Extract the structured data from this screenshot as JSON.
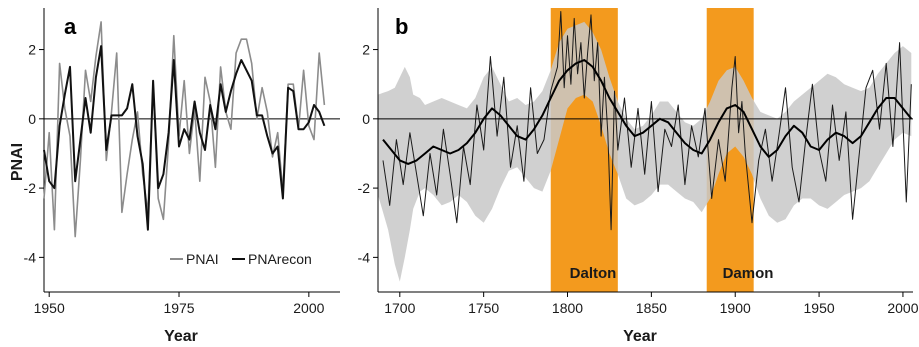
{
  "chart_data": [
    {
      "panel": "a",
      "type": "line",
      "xlabel": "Year",
      "ylabel": "PNAI",
      "xlim": [
        1949,
        2006
      ],
      "ylim": [
        -5,
        3.2
      ],
      "xticks": [
        1950,
        1975,
        2000
      ],
      "yticks": [
        -4,
        -2,
        0,
        2
      ],
      "zero_line": true,
      "legend": {
        "placement": "bottom-right",
        "entries": [
          "PNAI",
          "PNArecon"
        ]
      },
      "series": [
        {
          "name": "PNAI",
          "color": "#8c8c8c",
          "x": [
            1949,
            1950,
            1951,
            1952,
            1953,
            1954,
            1955,
            1956,
            1957,
            1958,
            1959,
            1960,
            1961,
            1962,
            1963,
            1964,
            1965,
            1966,
            1967,
            1968,
            1969,
            1970,
            1971,
            1972,
            1973,
            1974,
            1975,
            1976,
            1977,
            1978,
            1979,
            1980,
            1981,
            1982,
            1983,
            1984,
            1985,
            1986,
            1987,
            1988,
            1989,
            1990,
            1991,
            1992,
            1993,
            1994,
            1995,
            1996,
            1997,
            1998,
            1999,
            2000,
            2001,
            2002,
            2003
          ],
          "y": [
            -2.3,
            -0.4,
            -3.2,
            1.6,
            0.3,
            -0.5,
            -3.4,
            -1.2,
            1.4,
            0.5,
            1.8,
            2.8,
            -1.2,
            0.2,
            1.9,
            -2.7,
            -1.6,
            -0.6,
            0.2,
            -1.6,
            -2.7,
            1.0,
            -2.3,
            -2.9,
            -0.7,
            2.4,
            -0.5,
            1.1,
            -1.0,
            0.3,
            -1.8,
            1.2,
            0.5,
            -1.4,
            1.5,
            0.2,
            -0.3,
            1.9,
            2.3,
            2.3,
            1.6,
            0.0,
            0.9,
            0.2,
            -1.1,
            -0.4,
            -2.1,
            1.0,
            1.0,
            -0.3,
            1.4,
            -0.2,
            -0.6,
            1.9,
            0.4
          ]
        },
        {
          "name": "PNArecon",
          "color": "#111111",
          "x": [
            1949,
            1950,
            1951,
            1952,
            1953,
            1954,
            1955,
            1956,
            1957,
            1958,
            1959,
            1960,
            1961,
            1962,
            1963,
            1964,
            1965,
            1966,
            1967,
            1968,
            1969,
            1970,
            1971,
            1972,
            1973,
            1974,
            1975,
            1976,
            1977,
            1978,
            1979,
            1980,
            1981,
            1982,
            1983,
            1984,
            1985,
            1986,
            1987,
            1988,
            1989,
            1990,
            1991,
            1992,
            1993,
            1994,
            1995,
            1996,
            1997,
            1998,
            1999,
            2000,
            2001,
            2002,
            2003
          ],
          "y": [
            -0.9,
            -1.8,
            -2.0,
            -0.2,
            0.7,
            1.5,
            -1.8,
            -0.6,
            0.6,
            -0.4,
            1.2,
            2.1,
            -0.9,
            0.1,
            0.1,
            0.1,
            0.3,
            1.0,
            -0.5,
            -1.3,
            -3.2,
            1.1,
            -2.0,
            -1.6,
            -0.4,
            1.7,
            -0.8,
            -0.3,
            -0.6,
            0.5,
            -0.4,
            -0.9,
            0.4,
            -0.3,
            1.0,
            0.2,
            0.8,
            1.3,
            1.7,
            1.4,
            1.1,
            0.1,
            0.1,
            -0.5,
            -1.0,
            -0.8,
            -2.3,
            0.9,
            0.8,
            -0.3,
            -0.3,
            -0.1,
            0.4,
            0.2,
            -0.2
          ]
        }
      ]
    },
    {
      "panel": "b",
      "type": "line",
      "xlabel": "Year",
      "ylabel": "",
      "xlim": [
        1687,
        2006
      ],
      "ylim": [
        -5,
        3.2
      ],
      "xticks": [
        1700,
        1750,
        1800,
        1850,
        1900,
        1950,
        2000
      ],
      "yticks": [
        -4,
        -2,
        0,
        2
      ],
      "zero_line": true,
      "bands": [
        {
          "label": "Dalton",
          "start": 1790,
          "end": 1830,
          "color": "#f39a1e"
        },
        {
          "label": "Damon",
          "start": 1883,
          "end": 1911,
          "color": "#f39a1e"
        }
      ],
      "envelope": {
        "color": "#c8c8c8",
        "x": [
          1687,
          1693,
          1697,
          1700,
          1703,
          1706,
          1708,
          1712,
          1715,
          1720,
          1725,
          1730,
          1735,
          1740,
          1745,
          1750,
          1755,
          1760,
          1765,
          1770,
          1775,
          1780,
          1785,
          1790,
          1795,
          1800,
          1805,
          1810,
          1815,
          1820,
          1825,
          1830,
          1835,
          1840,
          1845,
          1850,
          1855,
          1860,
          1865,
          1870,
          1875,
          1880,
          1885,
          1890,
          1895,
          1900,
          1905,
          1910,
          1915,
          1920,
          1925,
          1930,
          1935,
          1940,
          1945,
          1950,
          1955,
          1960,
          1965,
          1970,
          1975,
          1980,
          1985,
          1990,
          1995,
          2000,
          2005
        ],
        "upper": [
          0.7,
          0.8,
          0.9,
          1.2,
          1.5,
          1.2,
          0.7,
          0.6,
          0.4,
          0.5,
          0.6,
          0.5,
          0.4,
          0.3,
          0.6,
          1.2,
          1.5,
          1.0,
          0.5,
          0.6,
          0.4,
          0.5,
          0.8,
          1.4,
          2.2,
          2.6,
          2.7,
          2.8,
          2.5,
          2.0,
          1.2,
          0.5,
          0.0,
          -0.3,
          -0.2,
          0.1,
          0.5,
          0.5,
          0.2,
          -0.1,
          -0.2,
          0.0,
          0.5,
          1.1,
          1.4,
          1.5,
          1.1,
          0.6,
          0.2,
          0.1,
          0.0,
          0.2,
          0.5,
          0.7,
          0.9,
          1.1,
          1.3,
          1.2,
          1.0,
          0.9,
          0.8,
          0.9,
          1.3,
          1.6,
          1.9,
          2.1,
          1.9
        ],
        "lower": [
          -2.2,
          -3.2,
          -4.2,
          -4.7,
          -4.0,
          -3.2,
          -2.6,
          -2.1,
          -2.0,
          -2.2,
          -2.5,
          -2.4,
          -2.2,
          -2.4,
          -2.8,
          -3.0,
          -2.6,
          -2.0,
          -1.5,
          -1.4,
          -1.7,
          -2.0,
          -2.1,
          -1.5,
          -0.6,
          0.3,
          0.6,
          0.7,
          0.5,
          -0.2,
          -1.0,
          -1.6,
          -2.3,
          -2.5,
          -2.4,
          -2.2,
          -1.9,
          -1.9,
          -2.1,
          -2.3,
          -2.4,
          -2.7,
          -2.3,
          -1.6,
          -1.0,
          -0.8,
          -1.1,
          -1.6,
          -2.3,
          -2.8,
          -3.0,
          -2.9,
          -2.5,
          -2.3,
          -2.3,
          -2.5,
          -2.6,
          -2.4,
          -2.2,
          -2.1,
          -2.0,
          -1.8,
          -1.4,
          -1.0,
          -0.6,
          -0.4,
          -0.5
        ]
      },
      "series": [
        {
          "name": "annual",
          "color": "#1a1a1a",
          "x": [
            1690,
            1694,
            1698,
            1702,
            1706,
            1710,
            1714,
            1718,
            1722,
            1726,
            1730,
            1734,
            1738,
            1742,
            1746,
            1750,
            1754,
            1758,
            1762,
            1766,
            1770,
            1774,
            1778,
            1782,
            1786,
            1790,
            1794,
            1796,
            1798,
            1800,
            1802,
            1804,
            1806,
            1808,
            1810,
            1812,
            1814,
            1816,
            1818,
            1820,
            1822,
            1824,
            1826,
            1828,
            1830,
            1834,
            1838,
            1842,
            1846,
            1850,
            1854,
            1858,
            1862,
            1866,
            1870,
            1874,
            1878,
            1882,
            1886,
            1890,
            1894,
            1898,
            1900,
            1902,
            1904,
            1906,
            1910,
            1914,
            1918,
            1922,
            1926,
            1930,
            1934,
            1938,
            1942,
            1946,
            1950,
            1954,
            1958,
            1962,
            1966,
            1970,
            1974,
            1978,
            1982,
            1986,
            1990,
            1994,
            1998,
            2002,
            2005
          ],
          "y": [
            -1.2,
            -2.5,
            -0.6,
            -1.9,
            -0.4,
            -1.6,
            -2.8,
            -1.0,
            -2.2,
            -0.3,
            -1.6,
            -3.0,
            -0.8,
            -1.9,
            0.4,
            -0.9,
            1.8,
            -0.5,
            1.2,
            -1.4,
            -0.2,
            -1.8,
            0.9,
            -1.0,
            -0.6,
            0.8,
            1.5,
            3.1,
            0.9,
            2.4,
            1.0,
            2.9,
            1.3,
            2.2,
            0.6,
            1.9,
            3.0,
            1.1,
            2.2,
            -0.5,
            1.2,
            -0.4,
            -3.2,
            0.8,
            -0.9,
            0.6,
            -1.4,
            0.3,
            -1.6,
            0.5,
            -2.1,
            -0.3,
            -0.8,
            0.4,
            -1.9,
            -0.2,
            -1.1,
            0.3,
            -2.3,
            -0.6,
            -1.8,
            0.9,
            1.8,
            -0.4,
            0.5,
            -1.0,
            -3.0,
            -1.2,
            -0.3,
            -1.8,
            -0.5,
            0.9,
            -1.4,
            -2.4,
            -0.6,
            1.0,
            -0.9,
            -1.8,
            0.4,
            -1.2,
            0.2,
            -2.9,
            -1.0,
            0.9,
            1.4,
            -0.3,
            1.6,
            -0.8,
            2.2,
            -2.4,
            1.0
          ]
        },
        {
          "name": "smoothed",
          "color": "#000000",
          "x": [
            1690,
            1695,
            1700,
            1705,
            1710,
            1715,
            1720,
            1725,
            1730,
            1735,
            1740,
            1745,
            1750,
            1755,
            1760,
            1765,
            1770,
            1775,
            1780,
            1785,
            1790,
            1795,
            1800,
            1805,
            1810,
            1815,
            1820,
            1825,
            1830,
            1835,
            1840,
            1845,
            1850,
            1855,
            1860,
            1865,
            1870,
            1875,
            1880,
            1885,
            1890,
            1895,
            1900,
            1905,
            1910,
            1915,
            1920,
            1925,
            1930,
            1935,
            1940,
            1945,
            1950,
            1955,
            1960,
            1965,
            1970,
            1975,
            1980,
            1985,
            1990,
            1995,
            2000,
            2005
          ],
          "y": [
            -0.6,
            -0.9,
            -1.2,
            -1.3,
            -1.2,
            -1.0,
            -0.8,
            -0.9,
            -1.0,
            -0.9,
            -0.7,
            -0.4,
            0.0,
            0.3,
            0.1,
            -0.2,
            -0.5,
            -0.6,
            -0.3,
            0.1,
            0.6,
            1.1,
            1.4,
            1.6,
            1.7,
            1.5,
            1.1,
            0.6,
            0.2,
            -0.2,
            -0.5,
            -0.4,
            -0.2,
            0.0,
            -0.1,
            -0.4,
            -0.7,
            -0.9,
            -1.0,
            -0.6,
            -0.1,
            0.3,
            0.4,
            0.2,
            -0.3,
            -0.8,
            -1.1,
            -0.9,
            -0.5,
            -0.2,
            -0.4,
            -0.8,
            -0.9,
            -0.6,
            -0.4,
            -0.5,
            -0.7,
            -0.5,
            -0.1,
            0.3,
            0.6,
            0.6,
            0.3,
            0.0
          ]
        }
      ]
    }
  ],
  "figure": {
    "panel_a_label": "a",
    "panel_b_label": "b",
    "ylabel": "PNAI",
    "xlabel_a": "Year",
    "xlabel_b": "Year",
    "legend_pnai": "PNAI",
    "legend_recon": "PNArecon",
    "band_dalton": "Dalton",
    "band_damon": "Damon"
  }
}
